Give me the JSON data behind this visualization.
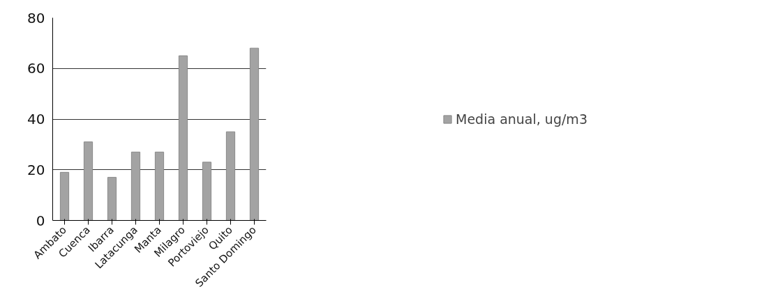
{
  "chart_data": {
    "type": "bar",
    "categories": [
      "Ambato",
      "Cuenca",
      "Ibarra",
      "Latacunga",
      "Manta",
      "Milagro",
      "Portoviejo",
      "Quito",
      "Santo Domingo"
    ],
    "series": [
      {
        "name": "Media anual, ug/m3",
        "color": "#a3a3a3",
        "values": [
          19,
          31,
          17,
          27,
          27,
          65,
          23,
          35,
          68
        ]
      }
    ],
    "ylim": [
      0,
      80
    ],
    "yticks": [
      0,
      20,
      40,
      60,
      80
    ],
    "grid": "y",
    "legend": "right"
  }
}
